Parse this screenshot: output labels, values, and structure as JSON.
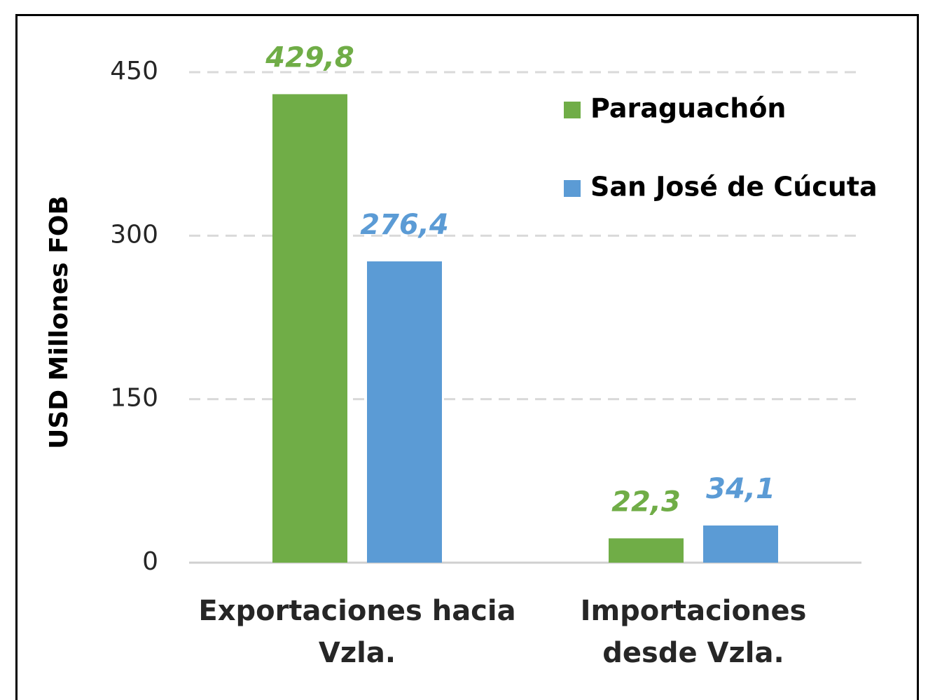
{
  "chart_data": {
    "type": "bar",
    "ylabel": "USD Millones FOB",
    "categories": [
      "Exportaciones hacia Vzla.",
      "Importaciones desde Vzla."
    ],
    "series": [
      {
        "name": "Paraguachón",
        "color": "#70ad47",
        "values": [
          429.8,
          22.3
        ],
        "value_labels": [
          "429,8",
          "22,3"
        ]
      },
      {
        "name": "San José de Cúcuta",
        "color": "#5b9bd5",
        "values": [
          276.4,
          34.1
        ],
        "value_labels": [
          "276,4",
          "34,1"
        ]
      }
    ],
    "ylim": [
      0,
      450
    ],
    "yticks": [
      0,
      150,
      300,
      450
    ],
    "grid": true,
    "legend": "upper right"
  }
}
